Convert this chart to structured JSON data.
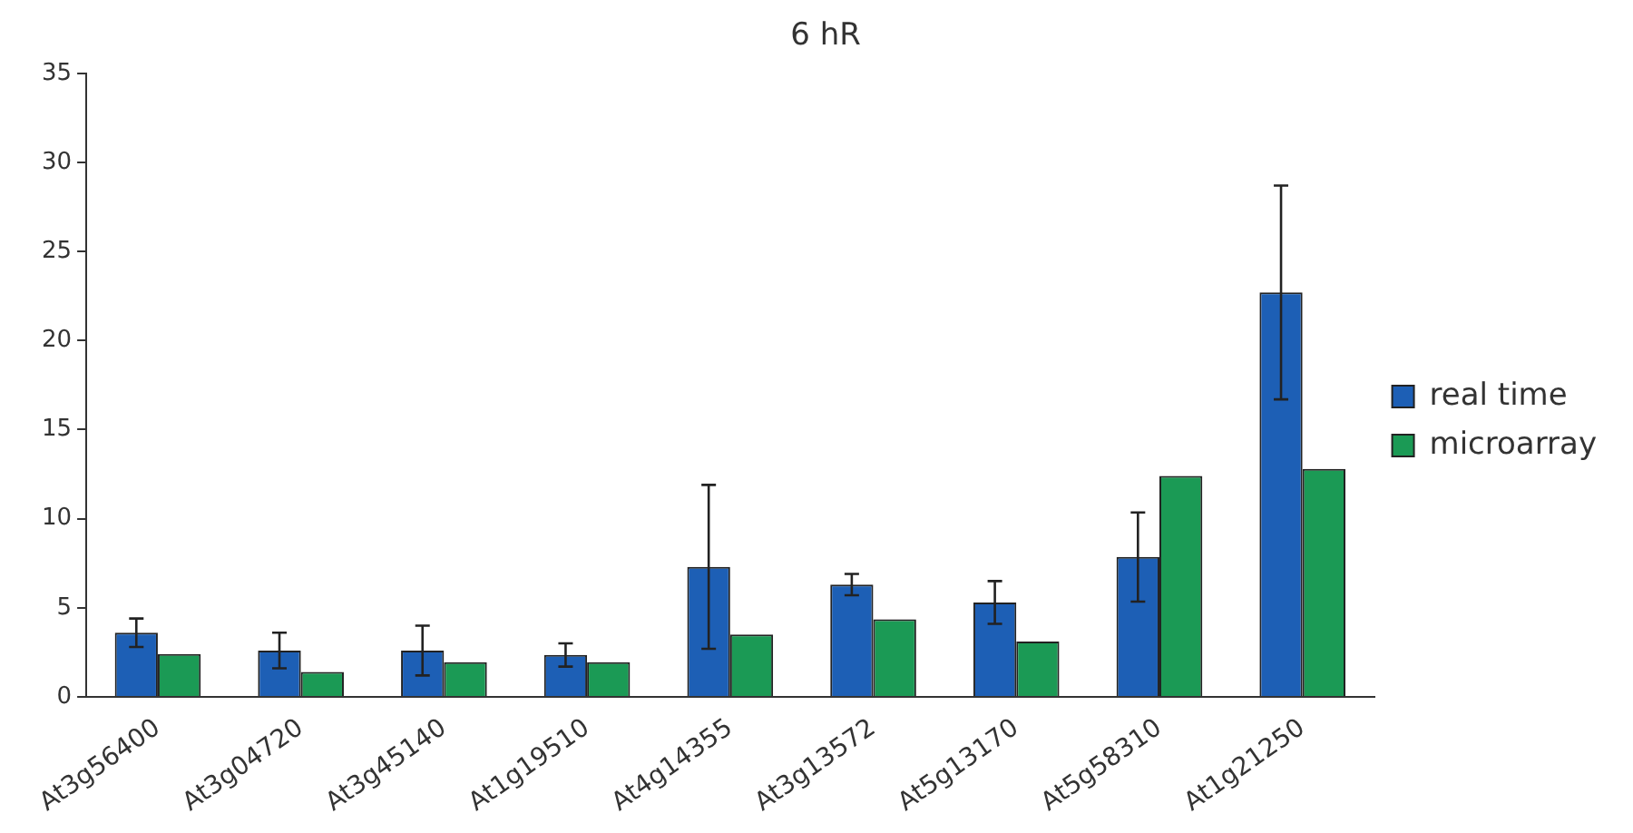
{
  "chart_data": {
    "type": "bar",
    "title": "6 hR",
    "categories": [
      "At3g56400",
      "At3g04720",
      "At3g45140",
      "At1g19510",
      "At4g14355",
      "At3g13572",
      "At5g13170",
      "At5g58310",
      "At1g21250"
    ],
    "series": [
      {
        "name": "real time",
        "color": "#1d5fb5",
        "values": [
          3.6,
          2.6,
          2.6,
          2.35,
          7.3,
          6.3,
          5.3,
          7.85,
          22.7
        ],
        "errors": [
          0.8,
          1.0,
          1.4,
          0.65,
          4.6,
          0.6,
          1.2,
          2.5,
          6
        ]
      },
      {
        "name": "microarray",
        "color": "#1b9a55",
        "values": [
          2.4,
          1.4,
          1.95,
          1.95,
          3.5,
          4.35,
          3.1,
          12.4,
          12.8
        ]
      }
    ],
    "ylim": [
      0,
      35
    ],
    "yticks": [
      0,
      5,
      10,
      15,
      20,
      25,
      30,
      35
    ],
    "grid": false,
    "legend": "right"
  }
}
